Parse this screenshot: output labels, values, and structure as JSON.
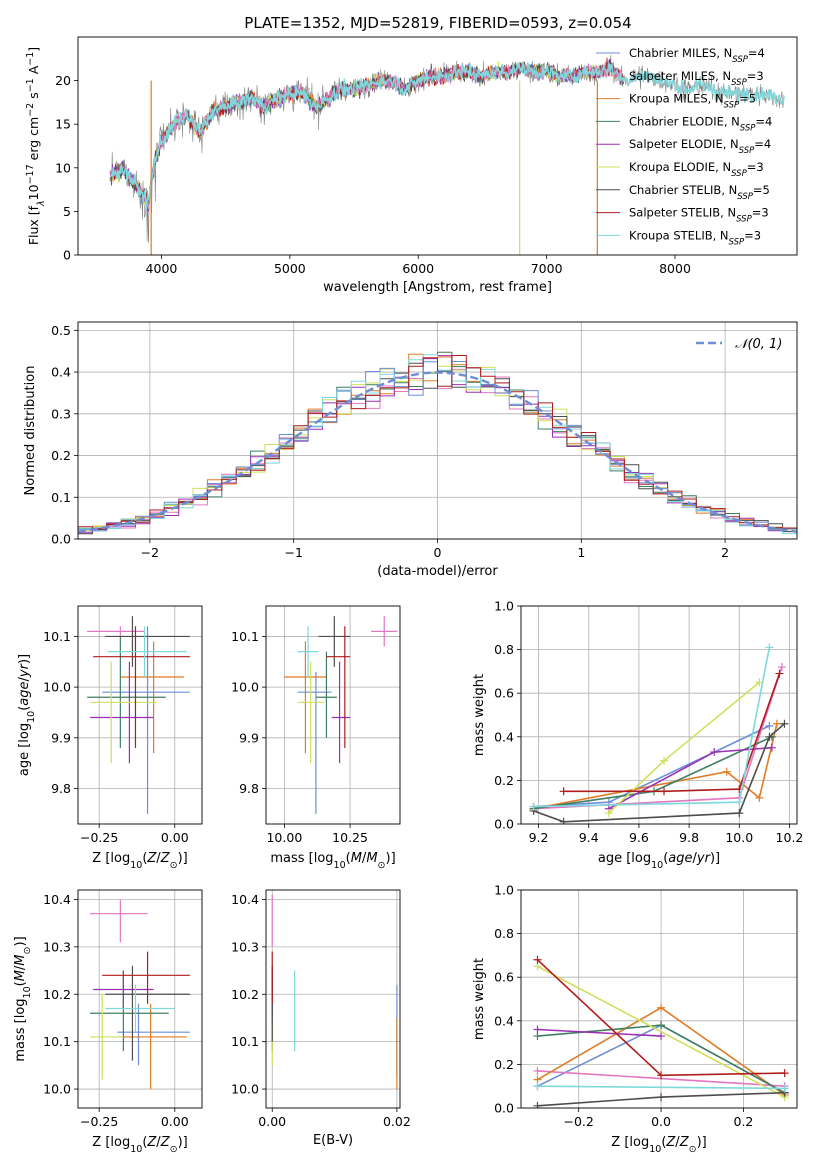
{
  "title": "PLATE=1352, MJD=52819, FIBERID=0593, z=0.054",
  "legend_entries": [
    {
      "pre": "Chabrier MILES, N",
      "sub": "SSP",
      "post": "=4",
      "color": "#6c8ed8"
    },
    {
      "pre": "Salpeter MILES, N",
      "sub": "SSP",
      "post": "=3",
      "color": "#e377c2"
    },
    {
      "pre": "Kroupa MILES, N",
      "sub": "SSP",
      "post": "=5",
      "color": "#e07b26"
    },
    {
      "pre": "Chabrier ELODIE, N",
      "sub": "SSP",
      "post": "=4",
      "color": "#3f7f5f"
    },
    {
      "pre": "Salpeter ELODIE, N",
      "sub": "SSP",
      "post": "=4",
      "color": "#9b30b5"
    },
    {
      "pre": "Kroupa ELODIE, N",
      "sub": "SSP",
      "post": "=3",
      "color": "#cfe05a"
    },
    {
      "pre": "Chabrier STELIB, N",
      "sub": "SSP",
      "post": "=5",
      "color": "#4d4d4d"
    },
    {
      "pre": "Salpeter STELIB, N",
      "sub": "SSP",
      "post": "=3",
      "color": "#b01c1c"
    },
    {
      "pre": "Kroupa STELIB, N",
      "sub": "SSP",
      "post": "=3",
      "color": "#7fd8dc"
    }
  ],
  "chart_data": [
    {
      "id": "spectrum",
      "type": "line",
      "xlabel": "wavelength [Angstrom, rest frame]",
      "ylabel": "Flux [f_λ 10^-17 erg cm^-2 s^-1 A^-1]",
      "ylabel_parts": [
        "Flux [f",
        "λ",
        "10",
        "−17",
        " erg cm",
        "−2",
        " s",
        "−1",
        " A",
        "−1",
        "]"
      ],
      "xlim": [
        3350,
        8950
      ],
      "ylim": [
        0,
        25
      ],
      "xticks": [
        4000,
        5000,
        6000,
        7000,
        8000
      ],
      "yticks": [
        0,
        5,
        10,
        15,
        20
      ],
      "continuum": [
        [
          3600,
          9
        ],
        [
          3700,
          10
        ],
        [
          3800,
          8
        ],
        [
          3900,
          6
        ],
        [
          3950,
          11
        ],
        [
          4000,
          13
        ],
        [
          4100,
          15
        ],
        [
          4200,
          16
        ],
        [
          4300,
          14
        ],
        [
          4400,
          16.5
        ],
        [
          4500,
          17
        ],
        [
          4600,
          17.5
        ],
        [
          4700,
          18
        ],
        [
          4800,
          17
        ],
        [
          4900,
          18
        ],
        [
          5000,
          18.5
        ],
        [
          5100,
          18.5
        ],
        [
          5200,
          17
        ],
        [
          5300,
          18
        ],
        [
          5400,
          19
        ],
        [
          5500,
          19
        ],
        [
          5600,
          19.5
        ],
        [
          5700,
          20
        ],
        [
          5800,
          20
        ],
        [
          5900,
          19
        ],
        [
          6000,
          20
        ],
        [
          6100,
          20.5
        ],
        [
          6200,
          20.5
        ],
        [
          6300,
          21
        ],
        [
          6400,
          21
        ],
        [
          6500,
          20.5
        ],
        [
          6600,
          21
        ],
        [
          6700,
          21
        ],
        [
          6800,
          21.5
        ],
        [
          6900,
          21
        ],
        [
          7000,
          21
        ],
        [
          7100,
          20.5
        ],
        [
          7200,
          20.5
        ],
        [
          7300,
          21
        ],
        [
          7400,
          21
        ],
        [
          7500,
          21.5
        ],
        [
          7600,
          20
        ],
        [
          7700,
          20.5
        ],
        [
          7800,
          20.5
        ],
        [
          7900,
          20
        ],
        [
          8000,
          19.5
        ],
        [
          8100,
          19
        ],
        [
          8200,
          19.5
        ],
        [
          8300,
          19
        ],
        [
          8400,
          18.5
        ],
        [
          8500,
          18.5
        ],
        [
          8600,
          18.5
        ],
        [
          8700,
          18.5
        ],
        [
          8800,
          18
        ]
      ],
      "drops": [
        3920,
        6790,
        7395
      ],
      "grid": false
    },
    {
      "id": "residuals",
      "type": "step",
      "xlabel": "(data-model)/error",
      "ylabel": "Normed distribution",
      "xlim": [
        -2.5,
        2.5
      ],
      "ylim": [
        0,
        0.52
      ],
      "xticks": [
        -2,
        -1,
        0,
        1,
        2
      ],
      "xtick_labels": [
        "−2",
        "−1",
        "0",
        "1",
        "2"
      ],
      "yticks": [
        0.0,
        0.1,
        0.2,
        0.3,
        0.4,
        0.5
      ],
      "ytick_labels": [
        "0.0",
        "0.1",
        "0.2",
        "0.3",
        "0.4",
        "0.5"
      ],
      "bin_width": 0.1,
      "gaussian": {
        "label": "𝒩(0, 1)",
        "mu": 0,
        "sigma": 1,
        "color": "#6c8ed8"
      },
      "grid": true,
      "legend_position": "upper right"
    },
    {
      "id": "age-vs-z",
      "type": "errorbar",
      "xlabel": "Z [log10(Z/Z⊙)]",
      "ylabel": "age [log10(age/yr)]",
      "xlim": [
        -0.32,
        0.09
      ],
      "ylim": [
        9.73,
        10.16
      ],
      "xticks": [
        -0.25,
        0.0
      ],
      "xtick_labels": [
        "−0.25",
        "0.00"
      ],
      "yticks": [
        9.8,
        9.9,
        10.0,
        10.1
      ],
      "ytick_labels": [
        "9.8",
        "9.9",
        "10.0",
        "10.1"
      ],
      "points": [
        {
          "c": 0,
          "x": -0.09,
          "y": 9.99,
          "xlo": -0.24,
          "xhi": 0.05,
          "ylo": 9.75,
          "yhi": 10.12
        },
        {
          "c": 1,
          "x": -0.18,
          "y": 10.11,
          "xlo": -0.29,
          "xhi": -0.1,
          "ylo": 10.1,
          "yhi": 10.12
        },
        {
          "c": 2,
          "x": -0.07,
          "y": 10.02,
          "xlo": -0.18,
          "xhi": 0.03,
          "ylo": 9.87,
          "yhi": 10.09
        },
        {
          "c": 3,
          "x": -0.18,
          "y": 9.98,
          "xlo": -0.29,
          "xhi": -0.03,
          "ylo": 9.88,
          "yhi": 10.1
        },
        {
          "c": 4,
          "x": -0.15,
          "y": 9.94,
          "xlo": -0.28,
          "xhi": -0.07,
          "ylo": 9.85,
          "yhi": 10.05
        },
        {
          "c": 5,
          "x": -0.21,
          "y": 9.97,
          "xlo": -0.28,
          "xhi": -0.06,
          "ylo": 9.85,
          "yhi": 10.05
        },
        {
          "c": 6,
          "x": -0.14,
          "y": 10.1,
          "xlo": -0.23,
          "xhi": 0.05,
          "ylo": 10.04,
          "yhi": 10.14
        },
        {
          "c": 7,
          "x": -0.13,
          "y": 10.06,
          "xlo": -0.27,
          "xhi": 0.05,
          "ylo": 9.88,
          "yhi": 10.12
        },
        {
          "c": 8,
          "x": -0.1,
          "y": 10.07,
          "xlo": -0.22,
          "xhi": 0.04,
          "ylo": 10.02,
          "yhi": 10.12
        }
      ],
      "grid": true
    },
    {
      "id": "age-vs-mass",
      "type": "errorbar",
      "xlabel": "mass [log10(M/M⊙)]",
      "ylabel": "",
      "xlim": [
        9.93,
        10.44
      ],
      "ylim": [
        9.73,
        10.16
      ],
      "xticks": [
        10.0,
        10.25
      ],
      "xtick_labels": [
        "10.00",
        "10.25"
      ],
      "yticks": [
        9.8,
        9.9,
        10.0,
        10.1
      ],
      "ytick_labels": [
        "9.8",
        "9.9",
        "10.0",
        "10.1"
      ],
      "points": [
        {
          "c": 0,
          "x": 10.12,
          "y": 9.99,
          "xlo": 10.05,
          "xhi": 10.18,
          "ylo": 9.75,
          "yhi": 10.03
        },
        {
          "c": 1,
          "x": 10.38,
          "y": 10.11,
          "xlo": 10.33,
          "xhi": 10.43,
          "ylo": 10.08,
          "yhi": 10.14
        },
        {
          "c": 2,
          "x": 10.08,
          "y": 10.02,
          "xlo": 10.0,
          "xhi": 10.16,
          "ylo": 9.87,
          "yhi": 10.09
        },
        {
          "c": 3,
          "x": 10.16,
          "y": 9.98,
          "xlo": 10.12,
          "xhi": 10.2,
          "ylo": 9.9,
          "yhi": 10.07
        },
        {
          "c": 4,
          "x": 10.21,
          "y": 9.94,
          "xlo": 10.18,
          "xhi": 10.25,
          "ylo": 9.85,
          "yhi": 10.05
        },
        {
          "c": 5,
          "x": 10.1,
          "y": 9.97,
          "xlo": 10.05,
          "xhi": 10.15,
          "ylo": 9.85,
          "yhi": 10.05
        },
        {
          "c": 6,
          "x": 10.19,
          "y": 10.1,
          "xlo": 10.13,
          "xhi": 10.25,
          "ylo": 10.04,
          "yhi": 10.14
        },
        {
          "c": 7,
          "x": 10.23,
          "y": 10.06,
          "xlo": 10.16,
          "xhi": 10.25,
          "ylo": 9.88,
          "yhi": 10.12
        },
        {
          "c": 8,
          "x": 10.09,
          "y": 10.07,
          "xlo": 10.05,
          "xhi": 10.13,
          "ylo": 10.02,
          "yhi": 10.12
        }
      ],
      "grid": true
    },
    {
      "id": "mass-weight-vs-age",
      "type": "line",
      "xlabel": "age [log10(age/yr)]",
      "ylabel": "mass weight",
      "xlim": [
        9.13,
        10.23
      ],
      "ylim": [
        0,
        1
      ],
      "xticks": [
        9.2,
        9.4,
        9.6,
        9.8,
        10.0,
        10.2
      ],
      "xtick_labels": [
        "9.2",
        "9.4",
        "9.6",
        "9.8",
        "10.0",
        "10.2"
      ],
      "yticks": [
        0.0,
        0.2,
        0.4,
        0.6,
        0.8,
        1.0
      ],
      "ytick_labels": [
        "0.0",
        "0.2",
        "0.4",
        "0.6",
        "0.8",
        "1.0"
      ],
      "series": [
        {
          "c": 0,
          "x": [
            9.18,
            9.48,
            10.12
          ],
          "y": [
            0.08,
            0.1,
            0.45
          ]
        },
        {
          "c": 1,
          "x": [
            9.18,
            10.0,
            10.17
          ],
          "y": [
            0.07,
            0.12,
            0.72
          ]
        },
        {
          "c": 2,
          "x": [
            9.18,
            9.95,
            10.08,
            10.15
          ],
          "y": [
            0.07,
            0.24,
            0.12,
            0.46
          ]
        },
        {
          "c": 3,
          "x": [
            9.18,
            9.66,
            10.13
          ],
          "y": [
            0.07,
            0.15,
            0.4
          ]
        },
        {
          "c": 4,
          "x": [
            9.48,
            9.9,
            10.13
          ],
          "y": [
            0.07,
            0.33,
            0.35
          ]
        },
        {
          "c": 5,
          "x": [
            9.48,
            9.7,
            10.08
          ],
          "y": [
            0.05,
            0.29,
            0.65
          ]
        },
        {
          "c": 6,
          "x": [
            9.18,
            9.3,
            10.0,
            10.12,
            10.18
          ],
          "y": [
            0.06,
            0.01,
            0.05,
            0.4,
            0.46
          ]
        },
        {
          "c": 7,
          "x": [
            9.3,
            9.7,
            10.0,
            10.16
          ],
          "y": [
            0.15,
            0.15,
            0.16,
            0.69
          ]
        },
        {
          "c": 8,
          "x": [
            9.18,
            10.0,
            10.12
          ],
          "y": [
            0.08,
            0.1,
            0.81
          ]
        }
      ],
      "grid": true
    },
    {
      "id": "mass-vs-z",
      "type": "errorbar",
      "xlabel": "Z [log10(Z/Z⊙)]",
      "ylabel": "mass [log10(M/M⊙)]",
      "xlim": [
        -0.32,
        0.09
      ],
      "ylim": [
        9.96,
        10.42
      ],
      "xticks": [
        -0.25,
        0.0
      ],
      "xtick_labels": [
        "−0.25",
        "0.00"
      ],
      "yticks": [
        10.0,
        10.1,
        10.2,
        10.3,
        10.4
      ],
      "ytick_labels": [
        "10.0",
        "10.1",
        "10.2",
        "10.3",
        "10.4"
      ],
      "points": [
        {
          "c": 0,
          "x": -0.12,
          "y": 10.12,
          "xlo": -0.19,
          "xhi": 0.05,
          "ylo": 10.05,
          "yhi": 10.18
        },
        {
          "c": 1,
          "x": -0.18,
          "y": 10.37,
          "xlo": -0.28,
          "xhi": -0.09,
          "ylo": 10.31,
          "yhi": 10.4
        },
        {
          "c": 2,
          "x": -0.08,
          "y": 10.11,
          "xlo": -0.18,
          "xhi": 0.04,
          "ylo": 10.0,
          "yhi": 10.18
        },
        {
          "c": 3,
          "x": -0.17,
          "y": 10.16,
          "xlo": -0.28,
          "xhi": -0.02,
          "ylo": 10.08,
          "yhi": 10.25
        },
        {
          "c": 4,
          "x": -0.17,
          "y": 10.21,
          "xlo": -0.27,
          "xhi": -0.07,
          "ylo": 10.17,
          "yhi": 10.25
        },
        {
          "c": 5,
          "x": -0.24,
          "y": 10.11,
          "xlo": -0.28,
          "xhi": -0.17,
          "ylo": 10.02,
          "yhi": 10.2
        },
        {
          "c": 6,
          "x": -0.14,
          "y": 10.2,
          "xlo": -0.23,
          "xhi": 0.05,
          "ylo": 10.06,
          "yhi": 10.26
        },
        {
          "c": 7,
          "x": -0.09,
          "y": 10.24,
          "xlo": -0.24,
          "xhi": 0.05,
          "ylo": 10.18,
          "yhi": 10.29
        },
        {
          "c": 8,
          "x": -0.13,
          "y": 10.17,
          "xlo": -0.23,
          "xhi": 0.0,
          "ylo": 10.12,
          "yhi": 10.22
        }
      ],
      "grid": true
    },
    {
      "id": "mass-vs-ebv",
      "type": "errorbar",
      "xlabel": "E(B-V)",
      "ylabel": "",
      "xlim": [
        -0.001,
        0.0205
      ],
      "ylim": [
        9.96,
        10.42
      ],
      "xticks": [
        0.0,
        0.02
      ],
      "xtick_labels": [
        "0.00",
        "0.02"
      ],
      "yticks": [
        10.0,
        10.1,
        10.2,
        10.3,
        10.4
      ],
      "ytick_labels": [
        "10.0",
        "10.1",
        "10.2",
        "10.3",
        "10.4"
      ],
      "points": [
        {
          "c": 0,
          "x": 0.02,
          "y": 10.12,
          "xlo": 0.02,
          "xhi": 0.02,
          "ylo": 10.03,
          "yhi": 10.22
        },
        {
          "c": 1,
          "x": 0.0,
          "y": 10.37,
          "xlo": 0.0,
          "xhi": 0.0,
          "ylo": 10.3,
          "yhi": 10.41
        },
        {
          "c": 2,
          "x": 0.02,
          "y": 10.11,
          "xlo": 0.02,
          "xhi": 0.02,
          "ylo": 10.0,
          "yhi": 10.15
        },
        {
          "c": 3,
          "x": 0.0,
          "y": 10.16,
          "xlo": 0.0,
          "xhi": 0.0,
          "ylo": 10.08,
          "yhi": 10.25
        },
        {
          "c": 4,
          "x": 0.0,
          "y": 10.21,
          "xlo": 0.0,
          "xhi": 0.0,
          "ylo": 10.16,
          "yhi": 10.26
        },
        {
          "c": 5,
          "x": 0.0,
          "y": 10.11,
          "xlo": 0.0,
          "xhi": 0.0,
          "ylo": 10.05,
          "yhi": 10.14
        },
        {
          "c": 6,
          "x": 0.0,
          "y": 10.2,
          "xlo": 0.0,
          "xhi": 0.0,
          "ylo": 10.1,
          "yhi": 10.26
        },
        {
          "c": 7,
          "x": 0.0,
          "y": 10.24,
          "xlo": 0.0,
          "xhi": 0.0,
          "ylo": 10.18,
          "yhi": 10.29
        },
        {
          "c": 8,
          "x": 0.0036,
          "y": 10.17,
          "xlo": 0.0036,
          "xhi": 0.0036,
          "ylo": 10.08,
          "yhi": 10.25
        }
      ],
      "grid": true
    },
    {
      "id": "mass-weight-vs-z",
      "type": "line",
      "xlabel": "Z [log10(Z/Z⊙)]",
      "ylabel": "mass weight",
      "xlim": [
        -0.34,
        0.33
      ],
      "ylim": [
        0,
        1
      ],
      "xticks": [
        -0.2,
        0.0,
        0.2
      ],
      "xtick_labels": [
        "−0.2",
        "0.0",
        "0.2"
      ],
      "yticks": [
        0.0,
        0.2,
        0.4,
        0.6,
        0.8,
        1.0
      ],
      "ytick_labels": [
        "0.0",
        "0.2",
        "0.4",
        "0.6",
        "0.8",
        "1.0"
      ],
      "series": [
        {
          "c": 0,
          "x": [
            -0.3,
            0.0,
            0.3
          ],
          "y": [
            0.1,
            0.38,
            0.07
          ]
        },
        {
          "c": 1,
          "x": [
            -0.3,
            0.3
          ],
          "y": [
            0.17,
            0.1
          ]
        },
        {
          "c": 2,
          "x": [
            -0.3,
            0.0,
            0.3
          ],
          "y": [
            0.13,
            0.46,
            0.06
          ]
        },
        {
          "c": 3,
          "x": [
            -0.3,
            0.0,
            0.3
          ],
          "y": [
            0.33,
            0.38,
            0.07
          ]
        },
        {
          "c": 4,
          "x": [
            -0.3,
            0.0
          ],
          "y": [
            0.36,
            0.33
          ]
        },
        {
          "c": 5,
          "x": [
            -0.3,
            0.3
          ],
          "y": [
            0.65,
            0.05
          ]
        },
        {
          "c": 6,
          "x": [
            -0.3,
            0.0,
            0.3
          ],
          "y": [
            0.01,
            0.05,
            0.07
          ]
        },
        {
          "c": 7,
          "x": [
            -0.3,
            0.0,
            0.3
          ],
          "y": [
            0.68,
            0.15,
            0.16
          ]
        },
        {
          "c": 8,
          "x": [
            -0.3,
            0.3
          ],
          "y": [
            0.1,
            0.09
          ]
        }
      ],
      "grid": true
    }
  ]
}
